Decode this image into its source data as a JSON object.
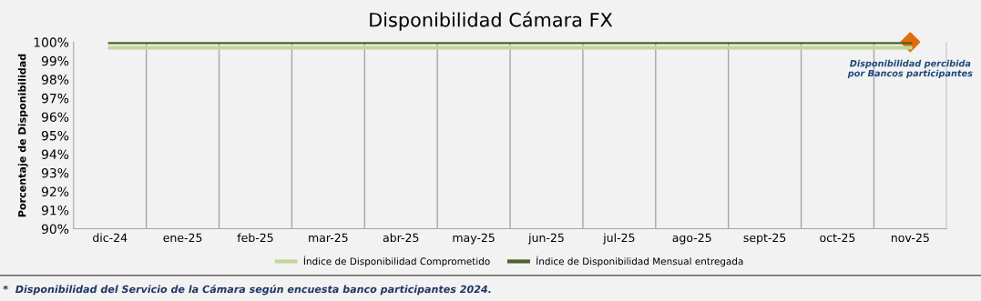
{
  "chart_data": {
    "type": "line",
    "title": "Disponibilidad Cámara FX",
    "ylabel": "Porcentaje de Disponibilidad",
    "categories": [
      "dic-24",
      "ene-25",
      "feb-25",
      "mar-25",
      "abr-25",
      "may-25",
      "jun-25",
      "jul-25",
      "ago-25",
      "sept-25",
      "oct-25",
      "nov-25"
    ],
    "series": [
      {
        "name": "Índice de Disponibilidad Comprometido",
        "color": "#c3d69b",
        "values": [
          99.7,
          99.7,
          99.7,
          99.7,
          99.7,
          99.7,
          99.7,
          99.7,
          99.7,
          99.7,
          99.7,
          99.7
        ]
      },
      {
        "name": "Índice de Disponibilidad Mensual entregada",
        "color": "#4f6228",
        "values": [
          100,
          100,
          100,
          100,
          100,
          100,
          100,
          100,
          100,
          100,
          100,
          100
        ]
      },
      {
        "type": "scatter",
        "marker": "diamond",
        "color": "#e36c09",
        "x": [
          "nov-25"
        ],
        "values": [
          100
        ]
      }
    ],
    "ylim": [
      90,
      100
    ],
    "yticks": [
      {
        "value": 90,
        "label": "90%"
      },
      {
        "value": 91,
        "label": "91%"
      },
      {
        "value": 92,
        "label": "92%"
      },
      {
        "value": 93,
        "label": "93%"
      },
      {
        "value": 94,
        "label": "94%"
      },
      {
        "value": 95,
        "label": "95%"
      },
      {
        "value": 96,
        "label": "96%"
      },
      {
        "value": 97,
        "label": "97%"
      },
      {
        "value": 98,
        "label": "98%"
      },
      {
        "value": 99,
        "label": "99%"
      },
      {
        "value": 100,
        "label": "100%"
      }
    ],
    "grid": "x",
    "legend": "bottom",
    "annotations": [
      {
        "text": "Disponibilidad percibida por Bancos participantes",
        "x": "nov-25",
        "y": 100
      },
      "*  Disponibilidad del Servicio de la Cámara según encuesta banco participantes 2024."
    ]
  }
}
